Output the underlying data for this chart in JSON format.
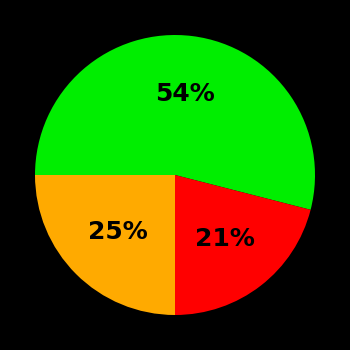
{
  "slices": [
    54,
    21,
    25
  ],
  "colors": [
    "#00ee00",
    "#ff0000",
    "#ffaa00"
  ],
  "labels": [
    "54%",
    "21%",
    "25%"
  ],
  "background_color": "#000000",
  "text_color": "#000000",
  "font_size": 18,
  "font_weight": "bold",
  "startangle": 180,
  "label_r": 0.58
}
